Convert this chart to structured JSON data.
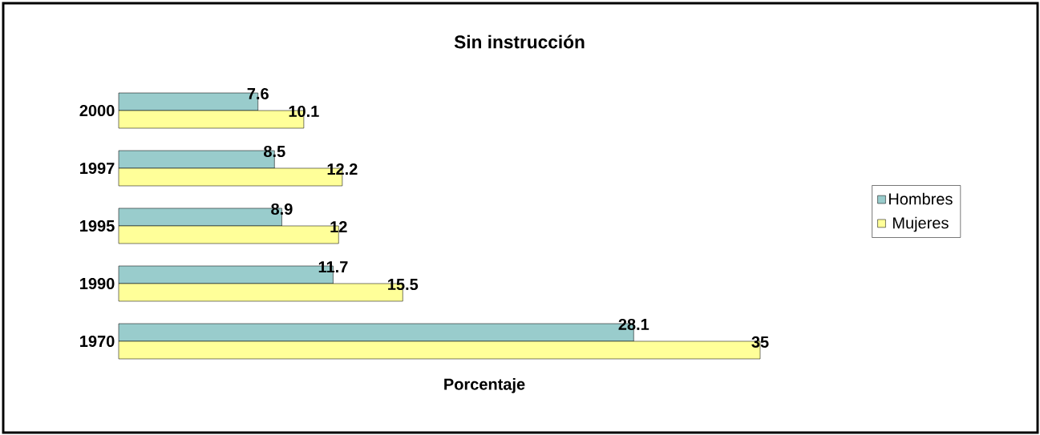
{
  "chart_data": {
    "type": "bar",
    "orientation": "horizontal",
    "title": "Sin instrucción",
    "xlabel": "Porcentaje",
    "categories": [
      "2000",
      "1997",
      "1995",
      "1990",
      "1970"
    ],
    "series": [
      {
        "name": "Hombres",
        "color": "#99cccc",
        "values": [
          7.6,
          8.5,
          8.9,
          11.7,
          28.1
        ]
      },
      {
        "name": "Mujeres",
        "color": "#ffff99",
        "values": [
          10.1,
          12.2,
          12,
          15.5,
          35
        ]
      }
    ],
    "data_labels": true,
    "legend": "right"
  }
}
